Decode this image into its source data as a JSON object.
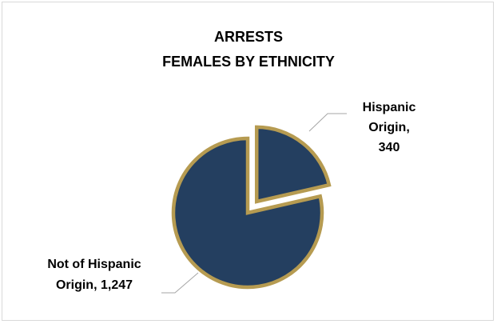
{
  "chart_data": {
    "type": "pie",
    "title_line1": "ARRESTS",
    "title_line2": "FEMALES BY ETHNICITY",
    "categories": [
      "Hispanic Origin",
      "Not of Hispanic Origin"
    ],
    "values": [
      340,
      1247
    ],
    "value_labels": [
      "340",
      "1,247"
    ],
    "data_labels": [
      {
        "lines": [
          "Hispanic",
          "Origin,",
          "340"
        ]
      },
      {
        "lines": [
          "Not of Hispanic",
          "Origin, 1,247"
        ]
      }
    ],
    "slice_fill": "#243f60",
    "slice_border": "#b69b51",
    "leader_color": "#a6a6a6",
    "exploded_slice": "Hispanic Origin",
    "legend": "none"
  }
}
